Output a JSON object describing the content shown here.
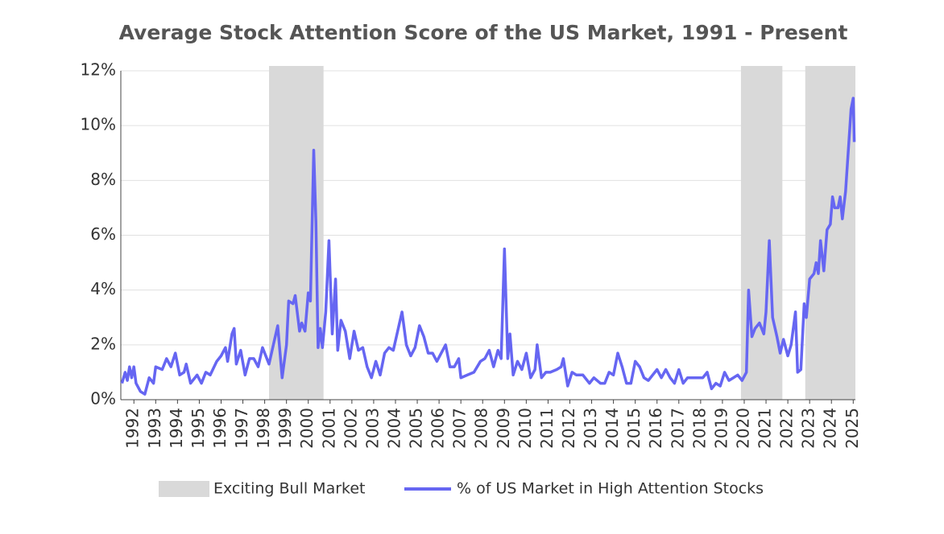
{
  "chart_data": {
    "type": "line",
    "title": "Average Stock Attention Score of the US Market, 1991 - Present",
    "xlim": [
      1991.4,
      2025.1
    ],
    "xticks": [
      1992,
      1993,
      1994,
      1995,
      1996,
      1997,
      1998,
      1999,
      2000,
      2001,
      2002,
      2003,
      2004,
      2005,
      2006,
      2007,
      2008,
      2009,
      2010,
      2011,
      2012,
      2013,
      2014,
      2015,
      2016,
      2017,
      2018,
      2019,
      2020,
      2021,
      2022,
      2023,
      2024,
      2025
    ],
    "ylim": [
      0,
      12
    ],
    "yticks": [
      {
        "value": 0,
        "label": "0%"
      },
      {
        "value": 2,
        "label": "2%"
      },
      {
        "value": 4,
        "label": "4%"
      },
      {
        "value": 6,
        "label": "6%"
      },
      {
        "value": 8,
        "label": "8%"
      },
      {
        "value": 10,
        "label": "10%"
      },
      {
        "value": 12,
        "label": "12%"
      }
    ],
    "grid": true,
    "legend": "bottom",
    "shaded": {
      "name": "Exciting Bull Market",
      "color": "#d9d9d9",
      "ranges": [
        [
          1998.2,
          2000.7
        ],
        [
          2019.85,
          2021.75
        ],
        [
          2022.8,
          2025.1
        ]
      ]
    },
    "series": [
      {
        "name": "% of US Market in High Attention Stocks",
        "color": "#6666f2",
        "x": [
          1991.45,
          1991.6,
          1991.7,
          1991.8,
          1991.9,
          1992.0,
          1992.1,
          1992.3,
          1992.5,
          1992.7,
          1992.9,
          1993.0,
          1993.3,
          1993.5,
          1993.7,
          1993.9,
          1994.1,
          1994.3,
          1994.4,
          1994.6,
          1994.9,
          1995.1,
          1995.3,
          1995.5,
          1995.8,
          1996.0,
          1996.2,
          1996.3,
          1996.5,
          1996.6,
          1996.7,
          1996.9,
          1997.1,
          1997.3,
          1997.5,
          1997.7,
          1997.9,
          1998.2,
          1998.4,
          1998.6,
          1998.8,
          1999.0,
          1999.1,
          1999.3,
          1999.4,
          1999.6,
          1999.7,
          1999.85,
          2000.0,
          2000.1,
          2000.25,
          2000.35,
          2000.45,
          2000.55,
          2000.65,
          2000.8,
          2000.95,
          2001.1,
          2001.25,
          2001.35,
          2001.5,
          2001.7,
          2001.9,
          2002.1,
          2002.3,
          2002.5,
          2002.7,
          2002.9,
          2003.1,
          2003.3,
          2003.5,
          2003.7,
          2003.9,
          2004.1,
          2004.3,
          2004.5,
          2004.7,
          2004.9,
          2005.1,
          2005.3,
          2005.5,
          2005.7,
          2005.9,
          2006.1,
          2006.3,
          2006.5,
          2006.7,
          2006.9,
          2007.0,
          2007.3,
          2007.6,
          2007.9,
          2008.1,
          2008.3,
          2008.5,
          2008.7,
          2008.85,
          2009.0,
          2009.15,
          2009.25,
          2009.4,
          2009.6,
          2009.8,
          2010.0,
          2010.2,
          2010.4,
          2010.5,
          2010.7,
          2010.9,
          2011.1,
          2011.4,
          2011.6,
          2011.7,
          2011.9,
          2012.1,
          2012.3,
          2012.6,
          2012.9,
          2013.1,
          2013.4,
          2013.6,
          2013.8,
          2014.0,
          2014.2,
          2014.4,
          2014.6,
          2014.8,
          2015.0,
          2015.2,
          2015.4,
          2015.6,
          2015.8,
          2016.0,
          2016.2,
          2016.4,
          2016.6,
          2016.8,
          2017.0,
          2017.2,
          2017.4,
          2017.7,
          2017.9,
          2018.1,
          2018.3,
          2018.5,
          2018.7,
          2018.9,
          2019.1,
          2019.3,
          2019.5,
          2019.7,
          2019.9,
          2020.1,
          2020.2,
          2020.35,
          2020.5,
          2020.7,
          2020.9,
          2021.0,
          2021.15,
          2021.3,
          2021.5,
          2021.65,
          2021.8,
          2022.0,
          2022.15,
          2022.35,
          2022.45,
          2022.6,
          2022.75,
          2022.85,
          2023.0,
          2023.2,
          2023.3,
          2023.4,
          2023.5,
          2023.65,
          2023.8,
          2023.95,
          2024.05,
          2024.15,
          2024.3,
          2024.4,
          2024.5,
          2024.65,
          2024.8,
          2024.9,
          2025.0,
          2025.05
        ],
        "values": [
          0.6,
          1.0,
          0.7,
          1.2,
          0.8,
          1.2,
          0.6,
          0.3,
          0.2,
          0.8,
          0.6,
          1.2,
          1.1,
          1.5,
          1.2,
          1.7,
          0.9,
          1.0,
          1.3,
          0.6,
          0.9,
          0.6,
          1.0,
          0.9,
          1.4,
          1.6,
          1.9,
          1.4,
          2.4,
          2.6,
          1.3,
          1.8,
          0.9,
          1.5,
          1.5,
          1.2,
          1.9,
          1.3,
          2.0,
          2.7,
          0.8,
          2.0,
          3.6,
          3.5,
          3.8,
          2.5,
          2.8,
          2.5,
          3.9,
          3.6,
          9.1,
          6.5,
          1.9,
          2.6,
          1.9,
          3.2,
          5.8,
          2.4,
          4.4,
          1.8,
          2.9,
          2.5,
          1.5,
          2.5,
          1.8,
          1.9,
          1.2,
          0.8,
          1.4,
          0.9,
          1.7,
          1.9,
          1.8,
          2.5,
          3.2,
          2.0,
          1.6,
          1.9,
          2.7,
          2.3,
          1.7,
          1.7,
          1.4,
          1.7,
          2.0,
          1.2,
          1.2,
          1.5,
          0.8,
          0.9,
          1.0,
          1.4,
          1.5,
          1.8,
          1.2,
          1.8,
          1.5,
          5.5,
          1.5,
          2.4,
          0.9,
          1.4,
          1.1,
          1.7,
          0.8,
          1.1,
          2.0,
          0.8,
          1.0,
          1.0,
          1.1,
          1.2,
          1.5,
          0.5,
          1.0,
          0.9,
          0.9,
          0.6,
          0.8,
          0.6,
          0.6,
          1.0,
          0.9,
          1.7,
          1.2,
          0.6,
          0.6,
          1.4,
          1.2,
          0.8,
          0.7,
          0.9,
          1.1,
          0.8,
          1.1,
          0.8,
          0.6,
          1.1,
          0.6,
          0.8,
          0.8,
          0.8,
          0.8,
          1.0,
          0.4,
          0.6,
          0.5,
          1.0,
          0.7,
          0.8,
          0.9,
          0.7,
          1.0,
          4.0,
          2.3,
          2.6,
          2.8,
          2.4,
          3.2,
          5.8,
          3.0,
          2.3,
          1.7,
          2.2,
          1.6,
          2.0,
          3.2,
          1.0,
          1.1,
          3.5,
          3.0,
          4.4,
          4.6,
          5.0,
          4.6,
          5.8,
          4.7,
          6.2,
          6.4,
          7.4,
          7.0,
          7.0,
          7.4,
          6.6,
          7.6,
          9.4,
          10.6,
          11.0,
          9.4
        ]
      }
    ]
  }
}
